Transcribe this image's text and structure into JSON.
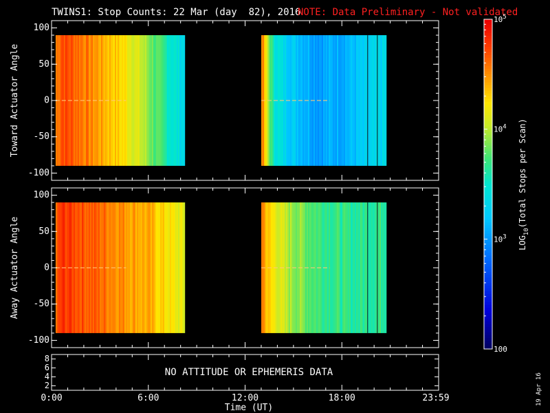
{
  "header": {
    "title": "TWINS1: Stop Counts: 22 Mar (day  82), 2016",
    "note": "NOTE: Data Preliminary - Not validated",
    "note_color": "#ff2020"
  },
  "chart_data": {
    "type": "heatmap",
    "x_unit": "hours UT",
    "x_range": [
      0,
      24
    ],
    "xlabel": "Time (UT)",
    "xticks": [
      "0:00",
      "6:00",
      "12:00",
      "18:00",
      "23:59"
    ],
    "panels": [
      {
        "ylabel": "Toward Actuator Angle",
        "ylim": [
          -110,
          110
        ],
        "yticks": [
          "100",
          "50",
          "0",
          "-50",
          "-100"
        ],
        "angle_range": [
          -90,
          90
        ],
        "data_segments": [
          {
            "start_h": 0.25,
            "end_h": 8.2
          },
          {
            "start_h": 13.0,
            "end_h": 20.7
          }
        ],
        "log_counts_profile": [
          {
            "t": 0.25,
            "v": 4.55
          },
          {
            "t": 0.6,
            "v": 4.75
          },
          {
            "t": 1.5,
            "v": 4.65
          },
          {
            "t": 3.0,
            "v": 4.45
          },
          {
            "t": 4.5,
            "v": 4.25
          },
          {
            "t": 5.5,
            "v": 4.05
          },
          {
            "t": 6.5,
            "v": 3.75
          },
          {
            "t": 7.5,
            "v": 3.5
          },
          {
            "t": 8.2,
            "v": 3.35
          },
          {
            "t": 13.0,
            "v": 4.6
          },
          {
            "t": 13.3,
            "v": 4.1
          },
          {
            "t": 13.7,
            "v": 3.55
          },
          {
            "t": 14.5,
            "v": 3.3
          },
          {
            "t": 16.5,
            "v": 3.05
          },
          {
            "t": 18.5,
            "v": 3.15
          },
          {
            "t": 20.7,
            "v": 3.35
          }
        ]
      },
      {
        "ylabel": "Away Actuator Angle",
        "ylim": [
          -110,
          110
        ],
        "yticks": [
          "100",
          "50",
          "0",
          "-50",
          "-100"
        ],
        "angle_range": [
          -90,
          90
        ],
        "data_segments": [
          {
            "start_h": 0.25,
            "end_h": 8.2
          },
          {
            "start_h": 13.0,
            "end_h": 20.7
          }
        ],
        "log_counts_profile": [
          {
            "t": 0.25,
            "v": 4.6
          },
          {
            "t": 0.6,
            "v": 4.8
          },
          {
            "t": 2.0,
            "v": 4.7
          },
          {
            "t": 4.0,
            "v": 4.55
          },
          {
            "t": 6.0,
            "v": 4.4
          },
          {
            "t": 8.2,
            "v": 4.1
          },
          {
            "t": 13.0,
            "v": 4.6
          },
          {
            "t": 13.4,
            "v": 4.3
          },
          {
            "t": 14.5,
            "v": 4.0
          },
          {
            "t": 16.5,
            "v": 3.75
          },
          {
            "t": 18.5,
            "v": 3.65
          },
          {
            "t": 20.7,
            "v": 3.7
          }
        ]
      }
    ],
    "colorbar": {
      "label": "LOG10(Total Stops per Scan)",
      "label_main": "LOG",
      "label_sub": "10",
      "label_rest": "(Total Stops per Scan)",
      "range_log": [
        2,
        5
      ],
      "ticks": [
        {
          "log": 5,
          "base": "10",
          "exp": "5"
        },
        {
          "log": 4,
          "base": "10",
          "exp": "4"
        },
        {
          "log": 3,
          "base": "10",
          "exp": "3"
        },
        {
          "log": 2,
          "base": "100",
          "exp": ""
        }
      ]
    },
    "bottom_panel": {
      "yticks": [
        "8",
        "6",
        "4",
        "2"
      ],
      "message": "NO ATTITUDE OR EPHEMERIS DATA"
    }
  },
  "footer": {
    "date_stamp": "19 Apr 16"
  }
}
